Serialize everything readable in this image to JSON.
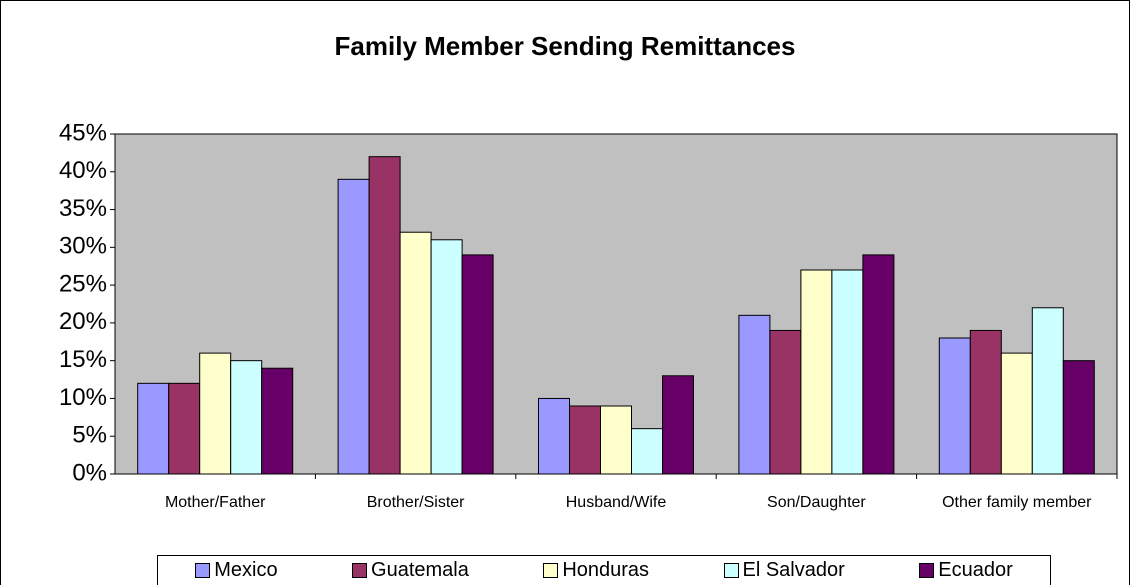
{
  "chart_data": {
    "type": "bar",
    "title": "Family Member Sending Remittances",
    "categories": [
      "Mother/Father",
      "Brother/Sister",
      "Husband/Wife",
      "Son/Daughter",
      "Other family member"
    ],
    "series": [
      {
        "name": "Mexico",
        "color": "#9999ff",
        "values": [
          12,
          39,
          10,
          21,
          18
        ]
      },
      {
        "name": "Guatemala",
        "color": "#993366",
        "values": [
          12,
          42,
          9,
          19,
          19
        ]
      },
      {
        "name": "Honduras",
        "color": "#ffffcc",
        "values": [
          16,
          32,
          9,
          27,
          16
        ]
      },
      {
        "name": "El Salvador",
        "color": "#ccffff",
        "values": [
          15,
          31,
          6,
          27,
          22
        ]
      },
      {
        "name": "Ecuador",
        "color": "#660066",
        "values": [
          14,
          29,
          13,
          29,
          15
        ]
      }
    ],
    "ylim": [
      0,
      45
    ],
    "yticks": [
      {
        "value": 0,
        "label": "0%"
      },
      {
        "value": 5,
        "label": "5%"
      },
      {
        "value": 10,
        "label": "10%"
      },
      {
        "value": 15,
        "label": "15%"
      },
      {
        "value": 20,
        "label": "20%"
      },
      {
        "value": 25,
        "label": "25%"
      },
      {
        "value": 30,
        "label": "30%"
      },
      {
        "value": 35,
        "label": "35%"
      },
      {
        "value": 40,
        "label": "40%"
      },
      {
        "value": 45,
        "label": "45%"
      }
    ],
    "grid": false,
    "plot_background": "#c0c0c0",
    "legend": "bottom"
  }
}
